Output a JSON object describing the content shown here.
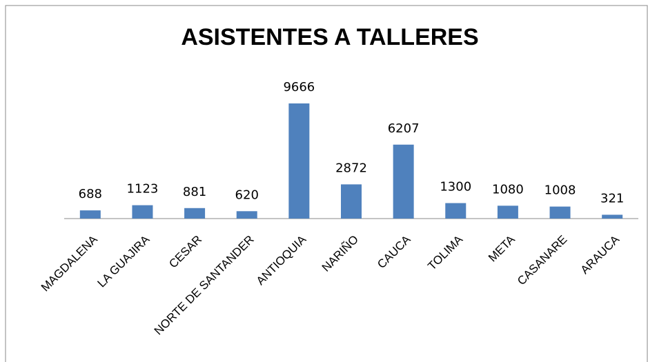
{
  "chart_data": {
    "type": "bar",
    "title": "ASISTENTES A TALLERES",
    "categories": [
      "MAGDALENA",
      "LA GUAJIRA",
      "CESAR",
      "NORTE DE SANTANDER",
      "ANTIOQUIA",
      "NARIÑO",
      "CAUCA",
      "TOLIMA",
      "META",
      "CASANARE",
      "ARAUCA"
    ],
    "values": [
      688,
      1123,
      881,
      620,
      9666,
      2872,
      6207,
      1300,
      1080,
      1008,
      321
    ],
    "color": "#4f81bd"
  }
}
